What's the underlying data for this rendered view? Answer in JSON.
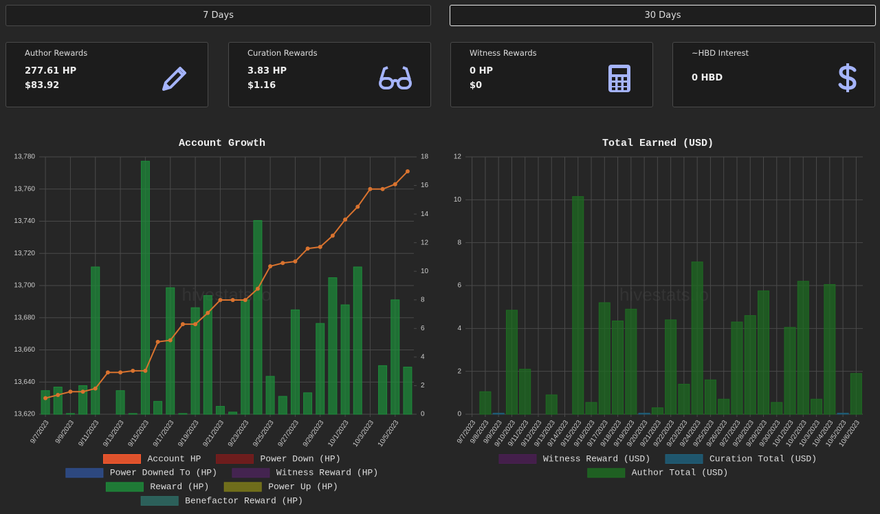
{
  "tabs": [
    {
      "label": "7 Days"
    },
    {
      "label": "30 Days",
      "active": true
    }
  ],
  "cards": [
    {
      "title": "Author Rewards",
      "lines": [
        "277.61 HP",
        "$83.92"
      ]
    },
    {
      "title": "Curation Rewards",
      "lines": [
        "3.83 HP",
        "$1.16"
      ]
    },
    {
      "title": "Witness Rewards",
      "lines": [
        "0 HP",
        "$0"
      ]
    },
    {
      "title": "~HBD Interest",
      "lines": [
        "0 HBD"
      ]
    }
  ],
  "chart_data": [
    {
      "type": "bar",
      "title": "Account Growth",
      "watermark": "hivestats.io",
      "categories": [
        "9/7/2023",
        null,
        "9/9/2023",
        null,
        "9/11/2023",
        null,
        "9/13/2023",
        null,
        "9/15/2023",
        null,
        "9/17/2023",
        null,
        "9/19/2023",
        null,
        "9/21/2023",
        null,
        "9/23/2023",
        null,
        "9/25/2023",
        null,
        "9/27/2023",
        null,
        "9/29/2023",
        null,
        "10/1/2023",
        null,
        "10/3/2023",
        null,
        "10/5/2023",
        null
      ],
      "ylim": [
        13620,
        13780
      ],
      "yticks": [
        {
          "value": 13620,
          "label": "13,620"
        },
        {
          "value": 13640,
          "label": "13,640"
        },
        {
          "value": 13660,
          "label": "13,660"
        },
        {
          "value": 13680,
          "label": "13,680"
        },
        {
          "value": 13700,
          "label": "13,700"
        },
        {
          "value": 13720,
          "label": "13,720"
        },
        {
          "value": 13740,
          "label": "13,740"
        },
        {
          "value": 13760,
          "label": "13,760"
        },
        {
          "value": 13780,
          "label": "13,780"
        }
      ],
      "y2lim": [
        0,
        18
      ],
      "y2ticks": [
        0,
        2,
        4,
        6,
        8,
        10,
        12,
        14,
        16,
        18
      ],
      "grid": true,
      "series": [
        {
          "name": "Account HP",
          "type": "line",
          "color": "#ff5a2e",
          "values": [
            13630,
            13632,
            13634,
            13634,
            13636,
            13646,
            13646,
            13647,
            13647,
            13665,
            13666,
            13676,
            13676,
            13683,
            13691,
            13691,
            13691,
            13698,
            13712,
            13714,
            13715,
            13723,
            13724,
            13731,
            13741,
            13749,
            13760,
            13760,
            13763,
            13771
          ]
        },
        {
          "name": "Power Down (HP)",
          "color": "#7a1c1c"
        },
        {
          "name": "Power Downed To (HP)",
          "color": "#2f4f8f"
        },
        {
          "name": "Witness Reward (HP)",
          "color": "#4a2458"
        },
        {
          "name": "Reward (HP)",
          "color": "#1e8a3a",
          "axis": "y2",
          "values": [
            1.65,
            1.9,
            0.05,
            2.0,
            10.3,
            0,
            1.65,
            0.05,
            17.7,
            0.9,
            8.85,
            0.05,
            7.45,
            8.3,
            0.55,
            0.15,
            8.0,
            13.55,
            2.65,
            1.25,
            7.3,
            1.5,
            6.35,
            9.55,
            7.65,
            10.3,
            0,
            3.4,
            8.0,
            3.3
          ]
        },
        {
          "name": "Power Up (HP)",
          "color": "#7d7a1a"
        },
        {
          "name": "Benefactor Reward (HP)",
          "color": "#2e6b64"
        }
      ]
    },
    {
      "type": "bar",
      "title": "Total Earned (USD)",
      "watermark": "hivestats.io",
      "categories": [
        "9/7/2023",
        "9/8/2023",
        "9/9/2023",
        "9/10/2023",
        "9/11/2023",
        "9/12/2023",
        "9/13/2023",
        "9/14/2023",
        "9/15/2023",
        "9/16/2023",
        "9/17/2023",
        "9/18/2023",
        "9/19/2023",
        "9/20/2023",
        "9/21/2023",
        "9/22/2023",
        "9/23/2023",
        "9/24/2023",
        "9/25/2023",
        "9/26/2023",
        "9/27/2023",
        "9/28/2023",
        "9/29/2023",
        "9/30/2023",
        "10/1/2023",
        "10/2/2023",
        "10/3/2023",
        "10/4/2023",
        "10/5/2023",
        "10/6/2023"
      ],
      "ylim": [
        0,
        12
      ],
      "yticks": [
        0,
        2,
        4,
        6,
        8,
        10,
        12
      ],
      "grid": true,
      "series": [
        {
          "name": "Witness Reward (USD)",
          "color": "#4a1f52",
          "values": [
            0,
            0,
            0,
            0,
            0,
            0,
            0,
            0,
            0,
            0,
            0,
            0,
            0,
            0,
            0,
            0,
            0,
            0,
            0,
            0,
            0,
            0,
            0,
            0,
            0,
            0,
            0,
            0,
            0,
            0
          ]
        },
        {
          "name": "Curation Total (USD)",
          "color": "#1f5f7a",
          "values": [
            0,
            0,
            0.05,
            0,
            0,
            0,
            0,
            0,
            0,
            0,
            0,
            0,
            0,
            0.05,
            0,
            0,
            0,
            0,
            0,
            0,
            0,
            0,
            0,
            0,
            0,
            0,
            0,
            0,
            0.05,
            0
          ]
        },
        {
          "name": "Author Total (USD)",
          "color": "#1e6b22",
          "values": [
            0,
            1.05,
            0,
            4.85,
            2.1,
            0,
            0.9,
            0,
            10.15,
            0.55,
            5.2,
            4.35,
            4.9,
            0,
            0.3,
            4.4,
            1.4,
            7.1,
            1.6,
            0.7,
            4.3,
            4.6,
            5.75,
            0.55,
            4.05,
            6.2,
            0.7,
            6.05,
            0,
            1.9
          ]
        }
      ]
    }
  ]
}
